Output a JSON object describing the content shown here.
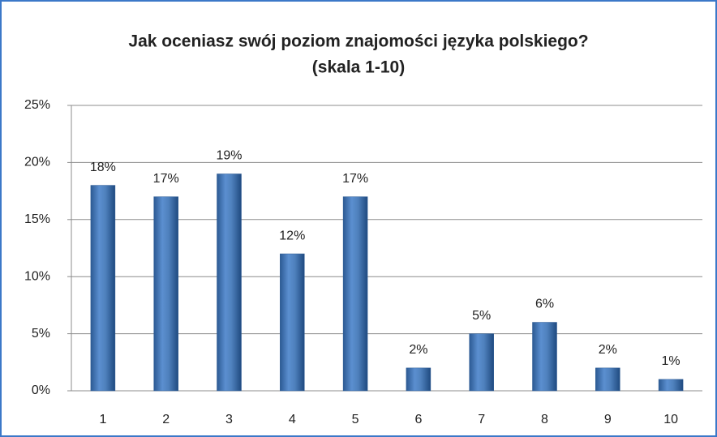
{
  "chart_data": {
    "type": "bar",
    "title": "Jak oceniasz swój poziom znajomości języka polskiego?",
    "subtitle": "(skala 1-10)",
    "categories": [
      "1",
      "2",
      "3",
      "4",
      "5",
      "6",
      "7",
      "8",
      "9",
      "10"
    ],
    "values": [
      18,
      17,
      19,
      12,
      17,
      2,
      5,
      6,
      2,
      1
    ],
    "value_labels": [
      "18%",
      "17%",
      "19%",
      "12%",
      "17%",
      "2%",
      "5%",
      "6%",
      "2%",
      "1%"
    ],
    "color": "#4f81bd",
    "ylim": [
      0,
      25
    ],
    "yticks": [
      {
        "value": 0,
        "label": "0%"
      },
      {
        "value": 5,
        "label": "5%"
      },
      {
        "value": 10,
        "label": "10%"
      },
      {
        "value": 15,
        "label": "15%"
      },
      {
        "value": 20,
        "label": "20%"
      },
      {
        "value": 25,
        "label": "25%"
      }
    ],
    "grid": true
  }
}
